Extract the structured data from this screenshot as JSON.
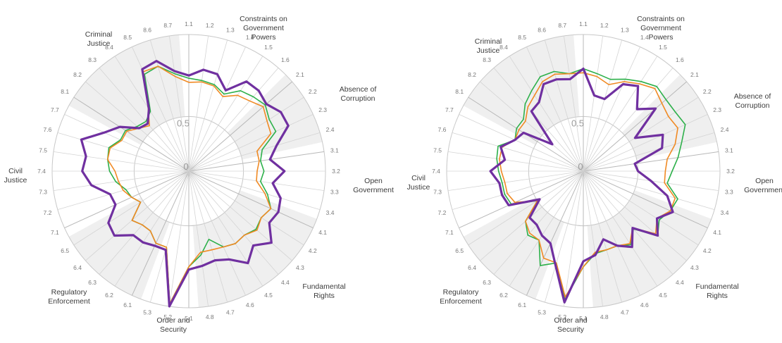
{
  "chart_data": [
    {
      "type": "radar",
      "radial_labels": [
        "0",
        "0.5"
      ],
      "range": [
        0,
        1
      ],
      "dimensions": [
        "Constraints on Government Powers",
        "Absence of Corruption",
        "Open Government",
        "Fundamental Rights",
        "Order and Security",
        "Regulatory Enforcement",
        "Civil Justice",
        "Criminal Justice"
      ],
      "categories": [
        "1.1",
        "1.2",
        "1.3",
        "1.4",
        "1.5",
        "1.6",
        "2.1",
        "2.2",
        "2.3",
        "2.4",
        "3.1",
        "3.2",
        "3.3",
        "3.4",
        "4.1",
        "4.2",
        "4.3",
        "4.4",
        "4.5",
        "4.6",
        "4.7",
        "4.8",
        "5.1",
        "5.2",
        "5.3",
        "6.1",
        "6.2",
        "6.3",
        "6.4",
        "6.5",
        "7.1",
        "7.2",
        "7.3",
        "7.4",
        "7.5",
        "7.6",
        "7.7",
        "8.1",
        "8.2",
        "8.3",
        "8.4",
        "8.5",
        "8.6",
        "8.7"
      ],
      "series": [
        {
          "color": "#2db04a",
          "values": [
            0.68,
            0.67,
            0.66,
            0.62,
            0.7,
            0.72,
            0.74,
            0.7,
            0.7,
            0.56,
            0.53,
            0.55,
            0.53,
            0.6,
            0.66,
            0.63,
            0.65,
            0.62,
            0.63,
            0.61,
            0.52,
            0.62,
            0.7,
            0.98,
            0.58,
            0.58,
            0.52,
            0.52,
            0.55,
            0.42,
            0.46,
            0.48,
            0.54,
            0.58,
            0.6,
            0.61,
            0.55,
            0.55,
            0.5,
            0.48,
            0.52,
            0.78,
            0.8,
            0.72
          ]
        },
        {
          "color": "#f08a24",
          "values": [
            0.65,
            0.66,
            0.65,
            0.6,
            0.66,
            0.68,
            0.72,
            0.68,
            0.66,
            0.52,
            0.52,
            0.5,
            0.5,
            0.58,
            0.66,
            0.63,
            0.66,
            0.62,
            0.63,
            0.61,
            0.6,
            0.6,
            0.7,
            0.98,
            0.58,
            0.58,
            0.52,
            0.52,
            0.55,
            0.42,
            0.46,
            0.5,
            0.52,
            0.54,
            0.6,
            0.6,
            0.54,
            0.54,
            0.48,
            0.44,
            0.55,
            0.8,
            0.8,
            0.7
          ]
        },
        {
          "color": "#7030a0",
          "values": [
            0.7,
            0.75,
            0.74,
            0.65,
            0.78,
            0.78,
            0.75,
            0.8,
            0.8,
            0.67,
            0.6,
            0.7,
            0.62,
            0.7,
            0.72,
            0.7,
            0.8,
            0.72,
            0.8,
            0.71,
            0.68,
            0.7,
            0.72,
            1.0,
            0.6,
            0.6,
            0.62,
            0.62,
            0.72,
            0.7,
            0.59,
            0.6,
            0.72,
            0.78,
            0.76,
            0.82,
            0.68,
            0.6,
            0.48,
            0.46,
            0.54,
            0.82,
            0.84,
            0.74
          ]
        }
      ]
    },
    {
      "type": "radar",
      "radial_labels": [
        "0",
        "0.5"
      ],
      "range": [
        0,
        1
      ],
      "dimensions": [
        "Constraints on Government Powers",
        "Absence of Corruption",
        "Open Government",
        "Fundamental Rights",
        "Order and Security",
        "Regulatory Enforcement",
        "Civil Justice",
        "Criminal Justice"
      ],
      "categories": [
        "1.1",
        "1.2",
        "1.3",
        "1.4",
        "1.5",
        "1.6",
        "2.1",
        "2.2",
        "2.3",
        "2.4",
        "3.1",
        "3.2",
        "3.3",
        "3.4",
        "4.1",
        "4.2",
        "4.3",
        "4.4",
        "4.5",
        "4.6",
        "4.7",
        "4.8",
        "5.1",
        "5.2",
        "5.3",
        "6.1",
        "6.2",
        "6.3",
        "6.4",
        "6.5",
        "7.1",
        "7.2",
        "7.3",
        "7.4",
        "7.5",
        "7.6",
        "7.7",
        "8.1",
        "8.2",
        "8.3",
        "8.4",
        "8.5",
        "8.6",
        "8.7"
      ],
      "series": [
        {
          "color": "#2db04a",
          "values": [
            0.75,
            0.72,
            0.7,
            0.74,
            0.78,
            0.82,
            0.8,
            0.8,
            0.82,
            0.75,
            0.7,
            0.65,
            0.62,
            0.72,
            0.7,
            0.66,
            0.72,
            0.56,
            0.64,
            0.6,
            0.6,
            0.61,
            0.7,
            0.95,
            0.7,
            0.76,
            0.6,
            0.62,
            0.56,
            0.4,
            0.58,
            0.6,
            0.6,
            0.62,
            0.64,
            0.65,
            0.55,
            0.58,
            0.58,
            0.65,
            0.7,
            0.76,
            0.76,
            0.72
          ]
        },
        {
          "color": "#f08a24",
          "values": [
            0.72,
            0.7,
            0.66,
            0.72,
            0.76,
            0.8,
            0.76,
            0.74,
            0.76,
            0.7,
            0.62,
            0.6,
            0.6,
            0.7,
            0.7,
            0.64,
            0.7,
            0.55,
            0.63,
            0.6,
            0.6,
            0.6,
            0.7,
            0.93,
            0.7,
            0.7,
            0.6,
            0.6,
            0.56,
            0.4,
            0.55,
            0.58,
            0.58,
            0.6,
            0.62,
            0.62,
            0.55,
            0.56,
            0.56,
            0.62,
            0.66,
            0.72,
            0.74,
            0.72
          ]
        },
        {
          "color": "#7030a0",
          "values": [
            0.75,
            0.56,
            0.55,
            0.7,
            0.74,
            0.6,
            0.7,
            0.45,
            0.64,
            0.6,
            0.38,
            0.4,
            0.5,
            0.64,
            0.72,
            0.64,
            0.72,
            0.55,
            0.66,
            0.6,
            0.52,
            0.62,
            0.66,
            0.97,
            0.72,
            0.58,
            0.56,
            0.52,
            0.52,
            0.38,
            0.6,
            0.62,
            0.62,
            0.68,
            0.58,
            0.63,
            0.55,
            0.52,
            0.3,
            0.58,
            0.6,
            0.7,
            0.7,
            0.68
          ]
        }
      ]
    }
  ]
}
